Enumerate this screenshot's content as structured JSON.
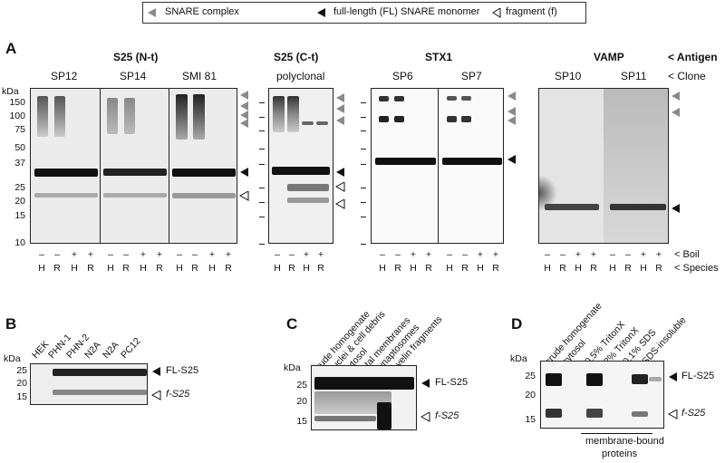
{
  "legend": {
    "snare_complex": "SNARE complex",
    "full_length": "full-length (FL) SNARE monomer",
    "fragment": "fragment (f)"
  },
  "panel_a": {
    "letter": "A",
    "antigen_row_label": "< Antigen",
    "clone_row_label": "< Clone",
    "boil_label": "< Boil",
    "species_label": "< Species",
    "kda": "kDa",
    "markers": [
      "150",
      "100",
      "75",
      "50",
      "37",
      "25",
      "20",
      "15",
      "10"
    ],
    "groups": [
      {
        "antigen": "S25 (N-t)",
        "clones": [
          "SP12",
          "SP14",
          "SMI 81"
        ]
      },
      {
        "antigen": "S25 (C-t)",
        "clones": [
          "polyclonal"
        ]
      },
      {
        "antigen": "STX1",
        "clones": [
          "SP6",
          "SP7"
        ]
      },
      {
        "antigen": "VAMP",
        "clones": [
          "SP10",
          "SP11"
        ]
      }
    ],
    "boil": [
      "–",
      "–",
      "+",
      "+"
    ],
    "species": [
      "H",
      "R",
      "H",
      "R"
    ]
  },
  "panel_b": {
    "letter": "B",
    "kda": "kDa",
    "markers": [
      "25",
      "20",
      "15"
    ],
    "lanes": [
      "HEK",
      "PHN-1",
      "PHN-2",
      "N2A",
      "N2A",
      "PC12"
    ],
    "fl_label": "FL-S25",
    "f_label": "f-S25"
  },
  "panel_c": {
    "letter": "C",
    "kda": "kDa",
    "markers": [
      "25",
      "20",
      "15"
    ],
    "lanes": [
      "crude homogenate",
      "nuclei & cell debris",
      "cytosol",
      "total membranes",
      "synaptosomes",
      "myelin fragments"
    ],
    "fl_label": "FL-S25",
    "f_label": "f-S25"
  },
  "panel_d": {
    "letter": "D",
    "kda": "kDa",
    "markers": [
      "25",
      "20",
      "15"
    ],
    "lanes": [
      "crude homogenate",
      "cytosol",
      "0.5% TritonX",
      "2% TritonX",
      "0.1% SDS",
      "SDS-insoluble"
    ],
    "fl_label": "FL-S25",
    "f_label": "f-S25",
    "bracket_label_1": "membrane-bound",
    "bracket_label_2": "proteins"
  }
}
